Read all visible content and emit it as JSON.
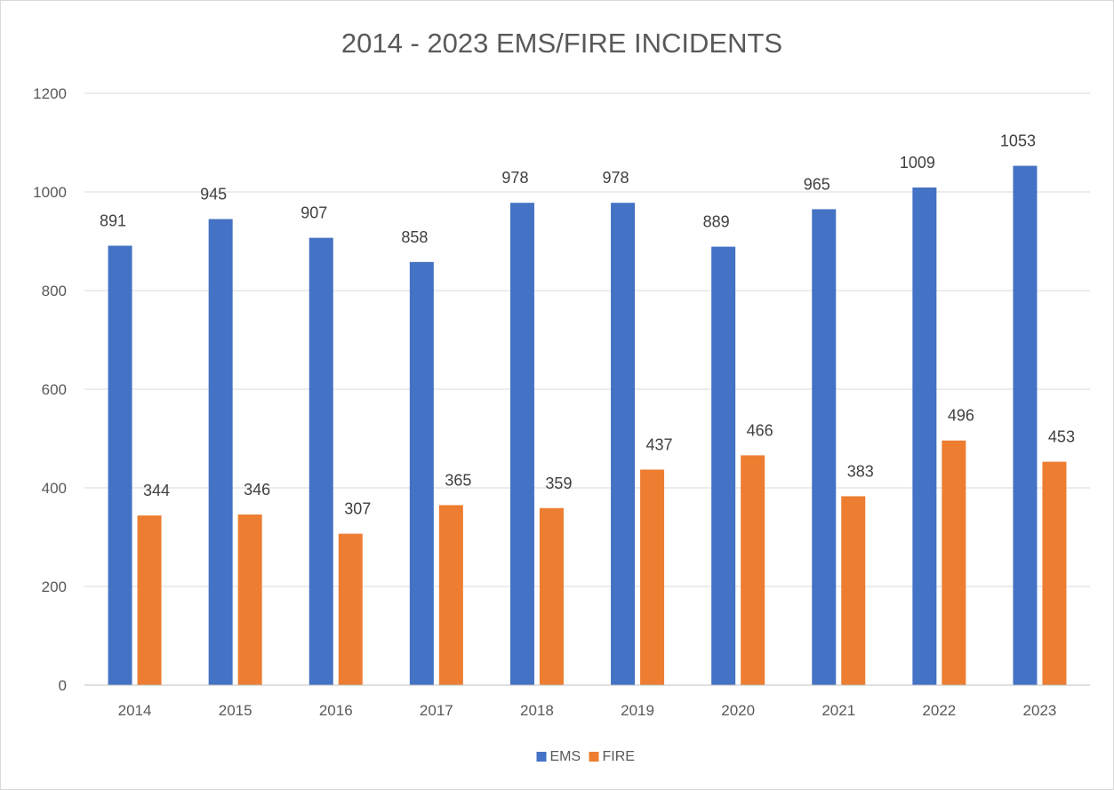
{
  "chart_data": {
    "type": "bar",
    "title": "2014 - 2023 EMS/FIRE INCIDENTS",
    "xlabel": "",
    "ylabel": "",
    "categories": [
      "2014",
      "2015",
      "2016",
      "2017",
      "2018",
      "2019",
      "2020",
      "2021",
      "2022",
      "2023"
    ],
    "series": [
      {
        "name": "EMS",
        "color": "#4472c4",
        "values": [
          891,
          945,
          907,
          858,
          978,
          978,
          889,
          965,
          1009,
          1053
        ]
      },
      {
        "name": "FIRE",
        "color": "#ed7d31",
        "values": [
          344,
          346,
          307,
          365,
          359,
          437,
          466,
          383,
          496,
          453
        ]
      }
    ],
    "ylim": [
      0,
      1200
    ],
    "yticks": [
      "0",
      "200",
      "400",
      "600",
      "800",
      "1000",
      "1200"
    ],
    "grid": true,
    "legend_position": "bottom",
    "data_labels": true
  }
}
